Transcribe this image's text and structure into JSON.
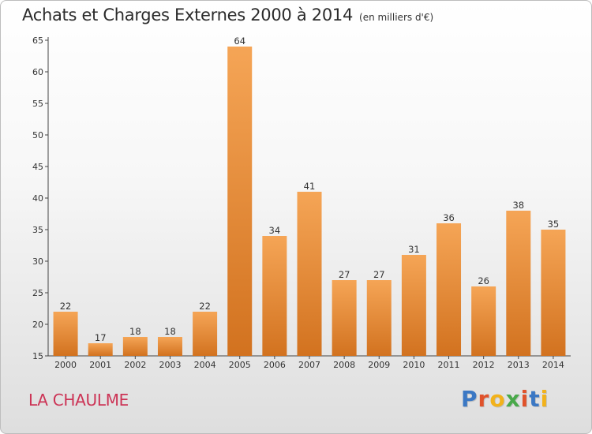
{
  "header": {
    "title": "Achats et Charges Externes 2000 à 2014",
    "unit": "(en milliers d'€)"
  },
  "footer": {
    "commune": "LA CHAULME",
    "logo": "Proxiti"
  },
  "colors": {
    "bar_top": "#f5a556",
    "bar_bottom": "#d2721f",
    "title": "#2b2b2b",
    "commune": "#cc3355",
    "logo_letters": [
      "#3b78c4",
      "#e0522b",
      "#f2b21b",
      "#49a94a",
      "#e0522b",
      "#3b78c4",
      "#f2b21b"
    ]
  },
  "chart_data": {
    "type": "bar",
    "title": "Achats et Charges Externes 2000 à 2014",
    "subtitle": "(en milliers d'€)",
    "categories": [
      "2000",
      "2001",
      "2002",
      "2003",
      "2004",
      "2005",
      "2006",
      "2007",
      "2008",
      "2009",
      "2010",
      "2011",
      "2012",
      "2013",
      "2014"
    ],
    "values": [
      22,
      17,
      18,
      18,
      22,
      64,
      34,
      41,
      27,
      27,
      31,
      36,
      26,
      38,
      35
    ],
    "ylim": [
      15,
      65
    ],
    "yticks": [
      15,
      20,
      25,
      30,
      35,
      40,
      45,
      50,
      55,
      60,
      65
    ],
    "grid": false,
    "data_labels": true
  }
}
